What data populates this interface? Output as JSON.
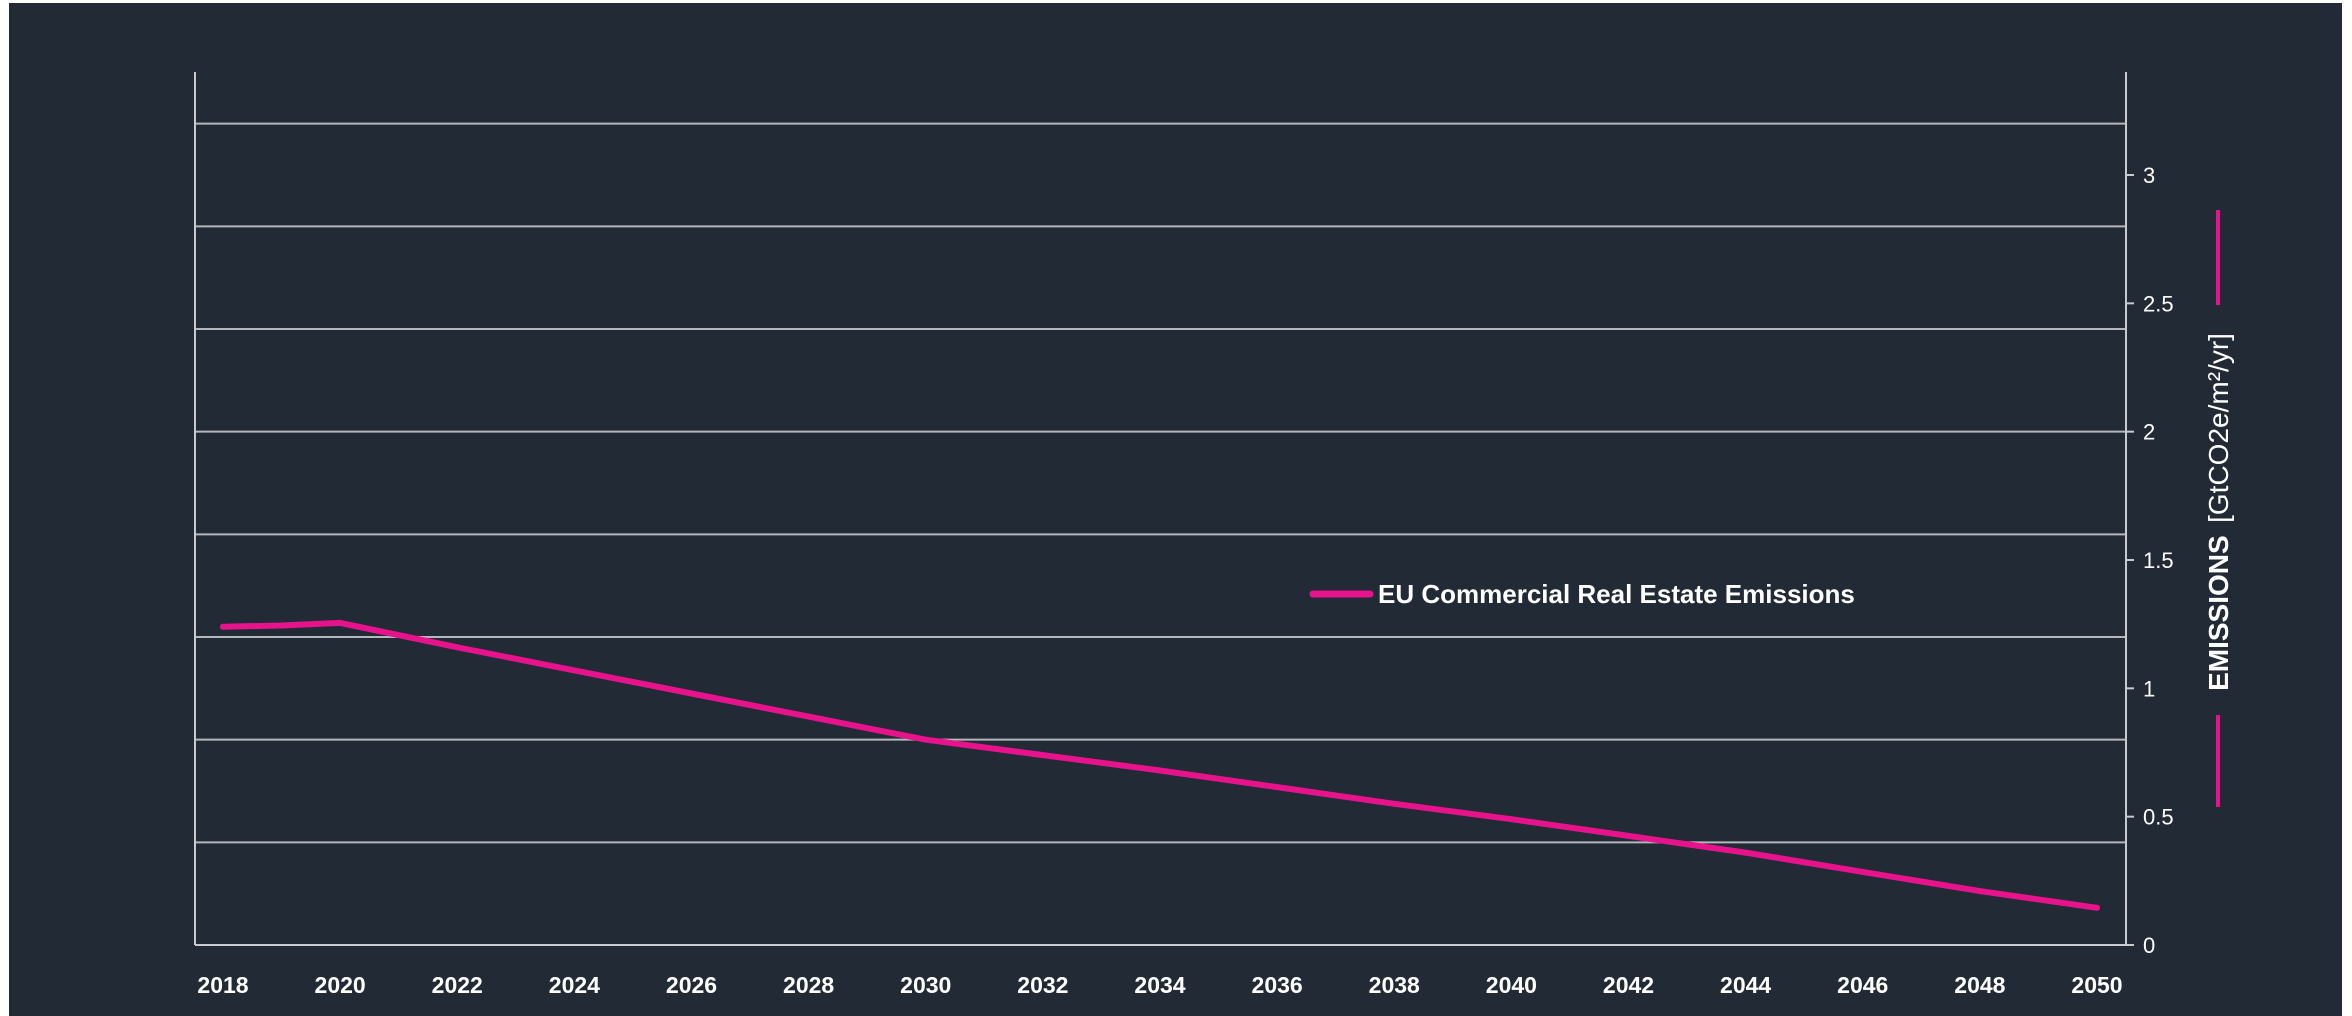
{
  "chart_data": {
    "type": "line",
    "x": [
      2018,
      2019,
      2020,
      2022,
      2024,
      2026,
      2028,
      2030,
      2032,
      2034,
      2036,
      2038,
      2040,
      2042,
      2044,
      2046,
      2048,
      2050
    ],
    "series": [
      {
        "name": "EU Commercial Real Estate Emissions",
        "values": [
          1.24,
          1.245,
          1.255,
          1.16,
          1.07,
          0.98,
          0.89,
          0.8,
          0.74,
          0.68,
          0.615,
          0.55,
          0.49,
          0.425,
          0.36,
          0.285,
          0.21,
          0.145
        ],
        "color": "#e6138c"
      }
    ],
    "x_ticks": [
      "2018",
      "2020",
      "2022",
      "2024",
      "2026",
      "2028",
      "2030",
      "2032",
      "2034",
      "2036",
      "2038",
      "2040",
      "2042",
      "2044",
      "2046",
      "2048",
      "2050"
    ],
    "y_ticks": [
      "0",
      "0.5",
      "1",
      "1.5",
      "2",
      "2.5",
      "3"
    ],
    "ylabel": "EMISSIONS",
    "ylabel_unit": "[GtCO2e/m²/yr]",
    "xlim": [
      2018,
      2050
    ],
    "ylim": [
      0,
      3.2
    ],
    "y_axis_side": "right",
    "grid": true,
    "legend_position": "center-right",
    "colors": {
      "background": "#222a35",
      "grid": "#b4b7bb",
      "text": "#ffffff",
      "line": "#e6138c"
    }
  }
}
